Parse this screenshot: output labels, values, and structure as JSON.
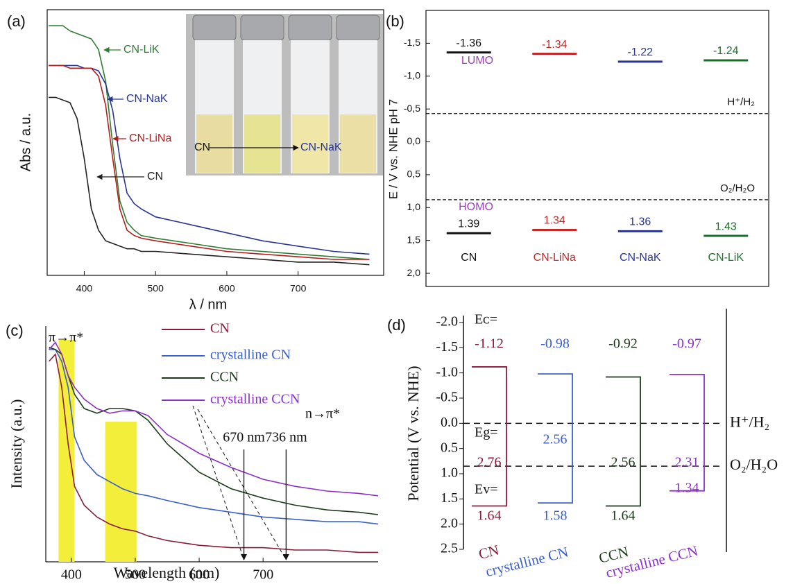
{
  "chart_data": [
    {
      "type": "line",
      "panel": "(a)",
      "xlabel": "λ / nm",
      "ylabel": "Abs / a.u.",
      "x": [
        350,
        360,
        370,
        380,
        390,
        400,
        410,
        420,
        430,
        440,
        450,
        460,
        470,
        480,
        500,
        550,
        600,
        650,
        700,
        750,
        800
      ],
      "xlim": [
        348,
        820
      ],
      "xticks": [
        400,
        500,
        600,
        700
      ],
      "ylim": [
        0,
        1
      ],
      "series": [
        {
          "name": "CN-LiK",
          "color": "#2e7d32",
          "values": [
            0.94,
            0.94,
            0.94,
            0.92,
            0.91,
            0.9,
            0.89,
            0.85,
            0.73,
            0.49,
            0.28,
            0.2,
            0.17,
            0.15,
            0.14,
            0.12,
            0.1,
            0.09,
            0.08,
            0.07,
            0.06
          ]
        },
        {
          "name": "CN-NaK",
          "color": "#283593",
          "values": [
            0.79,
            0.79,
            0.79,
            0.79,
            0.79,
            0.78,
            0.78,
            0.77,
            0.72,
            0.62,
            0.44,
            0.31,
            0.27,
            0.25,
            0.22,
            0.19,
            0.16,
            0.13,
            0.11,
            0.09,
            0.08
          ]
        },
        {
          "name": "CN-LiNa",
          "color": "#b71c1c",
          "values": [
            0.79,
            0.79,
            0.79,
            0.78,
            0.78,
            0.78,
            0.78,
            0.75,
            0.64,
            0.44,
            0.25,
            0.17,
            0.15,
            0.14,
            0.13,
            0.11,
            0.09,
            0.08,
            0.07,
            0.06,
            0.06
          ]
        },
        {
          "name": "CN",
          "color": "#222222",
          "values": [
            0.67,
            0.67,
            0.66,
            0.65,
            0.59,
            0.44,
            0.25,
            0.17,
            0.13,
            0.12,
            0.11,
            0.1,
            0.1,
            0.09,
            0.09,
            0.08,
            0.07,
            0.06,
            0.05,
            0.05,
            0.04
          ]
        }
      ],
      "inset_labels": [
        "CN",
        "CN-NaK"
      ]
    },
    {
      "type": "level",
      "panel": "(b)",
      "ylabel": "E / V vs. NHE pH 7",
      "categories": [
        "CN",
        "CN-LiNa",
        "CN-NaK",
        "CN-LiK"
      ],
      "colors": [
        "#111111",
        "#c62828",
        "#283593",
        "#1b6e2a"
      ],
      "ylim": [
        2.2,
        -2.0
      ],
      "yticks": [
        {
          "value": -1.5,
          "label": "-1,5"
        },
        {
          "value": -1,
          "label": "-1,0"
        },
        {
          "value": -0.5,
          "label": "-0,5"
        },
        {
          "value": 0,
          "label": "0,0"
        },
        {
          "value": 0.5,
          "label": "0,5"
        },
        {
          "value": 1,
          "label": "1,0"
        },
        {
          "value": 1.5,
          "label": "1,5"
        },
        {
          "value": 2,
          "label": "2,0"
        }
      ],
      "series": [
        {
          "name": "LUMO",
          "values": [
            -1.36,
            -1.34,
            -1.22,
            -1.24
          ]
        },
        {
          "name": "HOMO",
          "values": [
            1.39,
            1.34,
            1.36,
            1.43
          ]
        }
      ],
      "label_color": "#9c3fb8",
      "reference_lines": [
        {
          "label": "H⁺/H₂",
          "value": -0.43
        },
        {
          "label": "O₂/H₂O",
          "value": 0.88
        }
      ]
    },
    {
      "type": "line",
      "panel": "(c)",
      "xlabel": "Wavelength (nm)",
      "ylabel": "Intensity (a.u.)",
      "x": [
        365,
        375,
        385,
        395,
        405,
        420,
        440,
        460,
        480,
        500,
        520,
        550,
        600,
        650,
        700,
        750,
        800,
        850,
        880
      ],
      "xlim": [
        360,
        880
      ],
      "xticks": [
        400,
        500,
        600,
        700
      ],
      "ylim": [
        0,
        1
      ],
      "series": [
        {
          "name": "CN",
          "color": "#8b1a3a",
          "values": [
            0.85,
            0.88,
            0.74,
            0.5,
            0.32,
            0.24,
            0.19,
            0.16,
            0.14,
            0.13,
            0.11,
            0.09,
            0.07,
            0.06,
            0.06,
            0.05,
            0.05,
            0.04,
            0.04
          ]
        },
        {
          "name": "crystalline CN",
          "color": "#3a5fcd",
          "values": [
            0.9,
            0.9,
            0.85,
            0.74,
            0.53,
            0.43,
            0.37,
            0.34,
            0.31,
            0.29,
            0.28,
            0.26,
            0.23,
            0.21,
            0.19,
            0.18,
            0.17,
            0.17,
            0.16
          ]
        },
        {
          "name": "CCN",
          "color": "#1a3a1a",
          "values": [
            0.91,
            0.9,
            0.88,
            0.79,
            0.71,
            0.65,
            0.63,
            0.65,
            0.65,
            0.64,
            0.6,
            0.5,
            0.38,
            0.31,
            0.27,
            0.24,
            0.22,
            0.21,
            0.2
          ]
        },
        {
          "name": "crystalline CCN",
          "color": "#8b2fc9",
          "values": [
            0.9,
            0.93,
            0.88,
            0.79,
            0.74,
            0.69,
            0.65,
            0.63,
            0.64,
            0.64,
            0.62,
            0.54,
            0.46,
            0.4,
            0.35,
            0.32,
            0.3,
            0.29,
            0.28
          ]
        }
      ],
      "highlights": [
        [
          380,
          405
        ],
        [
          453,
          502
        ]
      ],
      "annotations": [
        {
          "text": "π→π*"
        },
        {
          "text": "n→π*"
        },
        {
          "text": "670 nm",
          "x": 670
        },
        {
          "text": "736 nm",
          "x": 736
        }
      ]
    },
    {
      "type": "band",
      "panel": "(d)",
      "ylabel": "Potential (V vs. NHE)",
      "categories": [
        "CN",
        "crystalline CN",
        "CCN",
        "crystalline CCN"
      ],
      "colors": [
        "#8b1a3a",
        "#3a5fcd",
        "#1a3a1a",
        "#8b2fc9"
      ],
      "ylim": [
        2.5,
        -2.0
      ],
      "yticks": [
        {
          "value": -2,
          "label": "-2.0"
        },
        -1.5,
        {
          "value": -1,
          "label": "-1.0"
        },
        -0.5,
        {
          "value": 0,
          "label": "0.0"
        },
        0.5,
        {
          "value": 1,
          "label": "1.0"
        },
        1.5,
        {
          "value": 2,
          "label": "2.0"
        },
        2.5
      ],
      "series": [
        {
          "name": "Eᴄ=",
          "values": [
            -1.12,
            -0.98,
            -0.92,
            -0.97
          ]
        },
        {
          "name": "Eg=",
          "values": [
            2.76,
            2.56,
            2.56,
            2.31
          ]
        },
        {
          "name": "Ev=",
          "values": [
            1.64,
            1.58,
            1.64,
            1.34
          ]
        }
      ],
      "reference_lines": [
        {
          "label": "H⁺/H₂",
          "value": 0
        },
        {
          "label": "O₂/H₂O",
          "value": 0.85
        }
      ]
    }
  ]
}
